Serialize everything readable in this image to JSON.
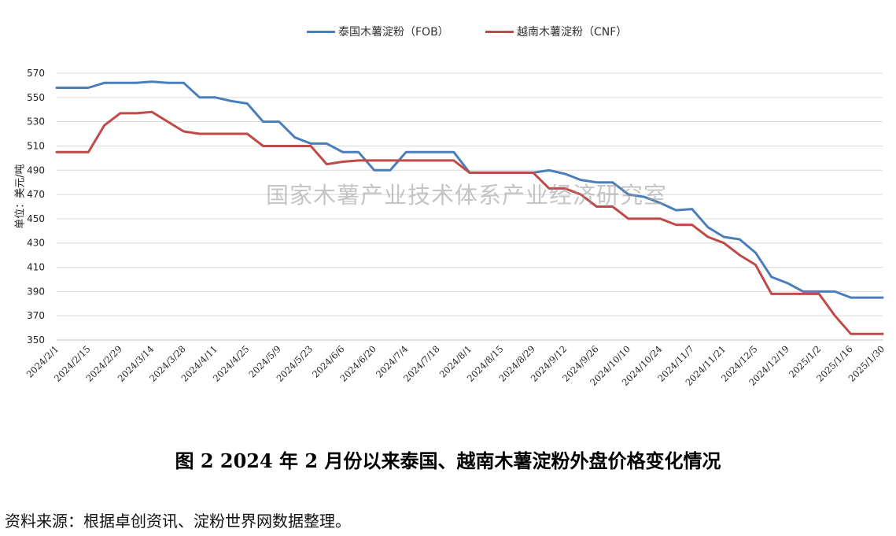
{
  "chart_data": {
    "type": "line",
    "title": "",
    "xlabel": "",
    "ylabel": "单位：美元/吨",
    "ylim": [
      350,
      570
    ],
    "yticks": [
      350,
      370,
      390,
      410,
      430,
      450,
      470,
      490,
      510,
      530,
      550,
      570
    ],
    "x_labels": [
      "2024/2/1",
      "2024/2/15",
      "2024/2/29",
      "2024/3/14",
      "2024/3/28",
      "2024/4/11",
      "2024/4/25",
      "2024/5/9",
      "2024/5/23",
      "2024/6/6",
      "2024/6/20",
      "2024/7/4",
      "2024/7/18",
      "2024/8/1",
      "2024/8/15",
      "2024/8/29",
      "2024/9/12",
      "2024/9/26",
      "2024/10/10",
      "2024/10/24",
      "2024/11/7",
      "2024/11/21",
      "2024/12/5",
      "2024/12/19",
      "2025/1/2",
      "2025/1/16",
      "2025/1/30"
    ],
    "x_dates": [
      "2024-02-01",
      "2024-02-08",
      "2024-02-15",
      "2024-02-22",
      "2024-02-29",
      "2024-03-07",
      "2024-03-14",
      "2024-03-21",
      "2024-03-28",
      "2024-04-04",
      "2024-04-11",
      "2024-04-18",
      "2024-04-25",
      "2024-05-02",
      "2024-05-09",
      "2024-05-16",
      "2024-05-23",
      "2024-05-30",
      "2024-06-06",
      "2024-06-13",
      "2024-06-20",
      "2024-06-27",
      "2024-07-04",
      "2024-07-11",
      "2024-07-18",
      "2024-07-25",
      "2024-08-01",
      "2024-08-08",
      "2024-08-15",
      "2024-08-22",
      "2024-08-29",
      "2024-09-05",
      "2024-09-12",
      "2024-09-19",
      "2024-09-26",
      "2024-10-03",
      "2024-10-10",
      "2024-10-17",
      "2024-10-24",
      "2024-10-31",
      "2024-11-07",
      "2024-11-14",
      "2024-11-21",
      "2024-11-28",
      "2024-12-05",
      "2024-12-12",
      "2024-12-19",
      "2024-12-26",
      "2025-01-02",
      "2025-01-09",
      "2025-01-16",
      "2025-01-23",
      "2025-01-30"
    ],
    "series": [
      {
        "name": "泰国木薯淀粉（FOB）",
        "color": "#4a7ebb",
        "values": [
          558,
          558,
          558,
          562,
          562,
          562,
          563,
          562,
          562,
          550,
          550,
          547,
          545,
          530,
          530,
          517,
          512,
          512,
          505,
          505,
          490,
          490,
          505,
          505,
          505,
          505,
          488,
          488,
          488,
          488,
          488,
          490,
          487,
          482,
          480,
          480,
          470,
          468,
          463,
          457,
          458,
          443,
          435,
          433,
          422,
          402,
          397,
          390,
          390,
          390,
          385,
          385,
          385
        ]
      },
      {
        "name": "越南木薯淀粉（CNF）",
        "color": "#be4b48",
        "values": [
          505,
          505,
          505,
          527,
          537,
          537,
          538,
          530,
          522,
          520,
          520,
          520,
          520,
          510,
          510,
          510,
          510,
          495,
          497,
          498,
          498,
          498,
          498,
          498,
          498,
          498,
          488,
          488,
          488,
          488,
          488,
          475,
          475,
          470,
          460,
          460,
          450,
          450,
          450,
          445,
          445,
          435,
          430,
          420,
          412,
          388,
          388,
          388,
          388,
          370,
          355,
          355,
          355
        ]
      }
    ],
    "grid": true,
    "legend_position": "top-center"
  },
  "watermark": "国家木薯产业技术体系产业经济研究室",
  "caption": "图 2   2024 年 2 月份以来泰国、越南木薯淀粉外盘价格变化情况",
  "source": "资料来源：根据卓创资讯、淀粉世界网数据整理。"
}
